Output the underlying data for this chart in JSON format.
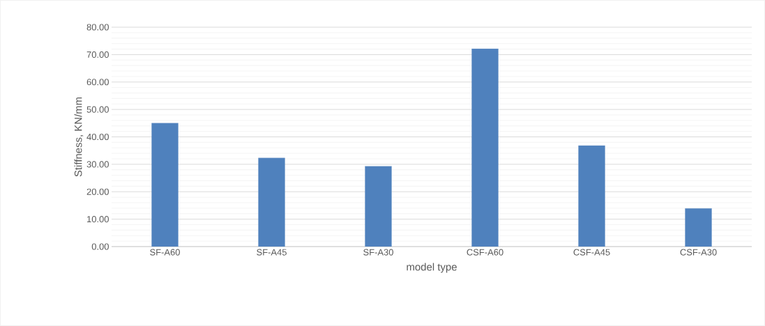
{
  "chart_data": {
    "type": "bar",
    "xlabel": "model type",
    "ylabel": "Stiffness, KN/mm",
    "categories": [
      "SF-A60",
      "SF-A45",
      "SF-A30",
      "CSF-A60",
      "CSF-A45",
      "CSF-A30"
    ],
    "values": [
      45.0,
      32.3,
      29.3,
      72.1,
      36.8,
      13.9
    ],
    "color": "#4f81bd",
    "ylim": [
      0,
      80
    ],
    "yticks": [
      {
        "value": 0,
        "label": "0.00"
      },
      {
        "value": 10,
        "label": "10.00"
      },
      {
        "value": 20,
        "label": "20.00"
      },
      {
        "value": 30,
        "label": "30.00"
      },
      {
        "value": 40,
        "label": "40.00"
      },
      {
        "value": 50,
        "label": "50.00"
      },
      {
        "value": 60,
        "label": "60.00"
      },
      {
        "value": 70,
        "label": "70.00"
      },
      {
        "value": 80,
        "label": "80.00"
      }
    ],
    "grid": "y"
  }
}
